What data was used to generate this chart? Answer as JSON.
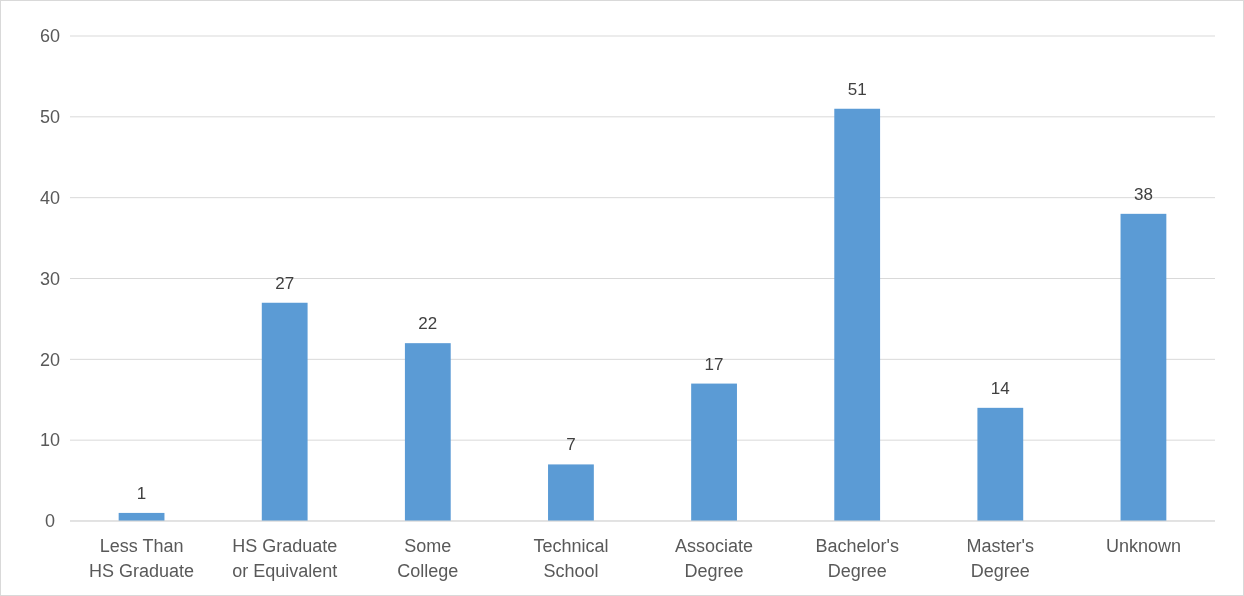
{
  "chart_data": {
    "type": "bar",
    "categories": [
      "Less Than HS Graduate",
      "HS Graduate or Equivalent",
      "Some College",
      "Technical School",
      "Associate Degree",
      "Bachelor's Degree",
      "Master's Degree",
      "Unknown"
    ],
    "values": [
      1,
      27,
      22,
      7,
      17,
      51,
      14,
      38
    ],
    "color": "#5b9bd5",
    "ylim": [
      0,
      60
    ],
    "yticks": [
      0,
      10,
      20,
      30,
      40,
      50,
      60
    ],
    "grid": "y",
    "data_labels": true
  }
}
